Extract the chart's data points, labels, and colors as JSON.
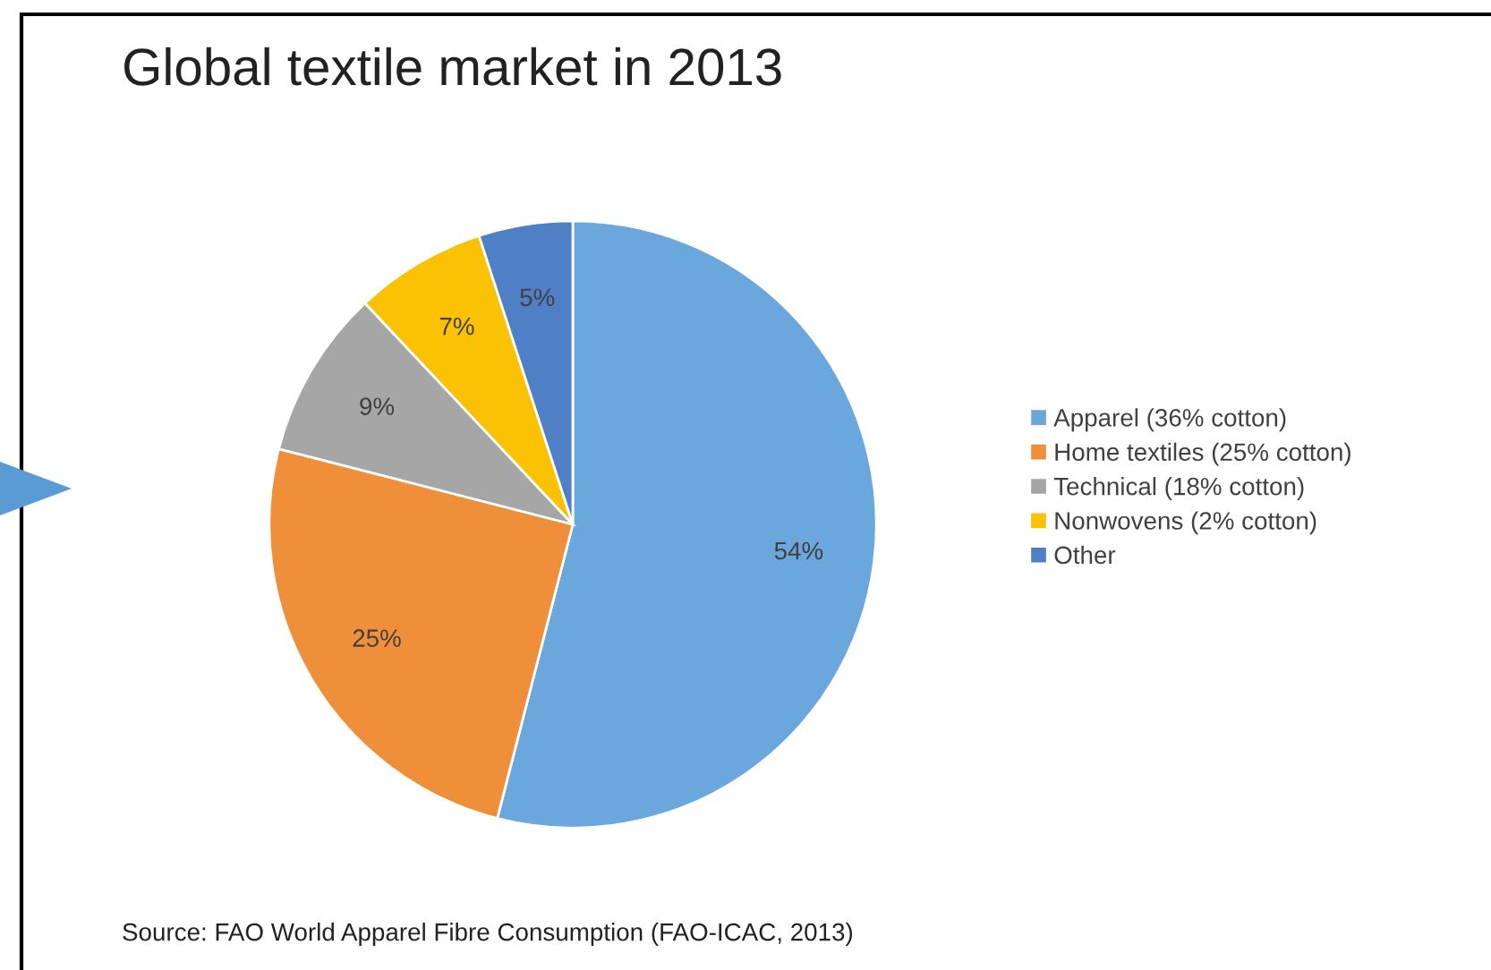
{
  "chart_data": {
    "type": "pie",
    "title": "Global textile market in 2013",
    "categories": [
      "Apparel (36% cotton)",
      "Home textiles (25% cotton)",
      "Technical (18% cotton)",
      "Nonwovens (2% cotton)",
      "Other"
    ],
    "values": [
      54,
      25,
      9,
      7,
      5
    ],
    "colors": [
      "#6aa7dc",
      "#f08f3a",
      "#a6a6a6",
      "#fbc103",
      "#4f7fc4"
    ],
    "value_labels": [
      "54%",
      "25%",
      "9%",
      "7%",
      "5%"
    ],
    "legend": "right",
    "annotations": [
      "Source: FAO World Apparel Fibre Consumption (FAO-ICAC, 2013)"
    ]
  }
}
